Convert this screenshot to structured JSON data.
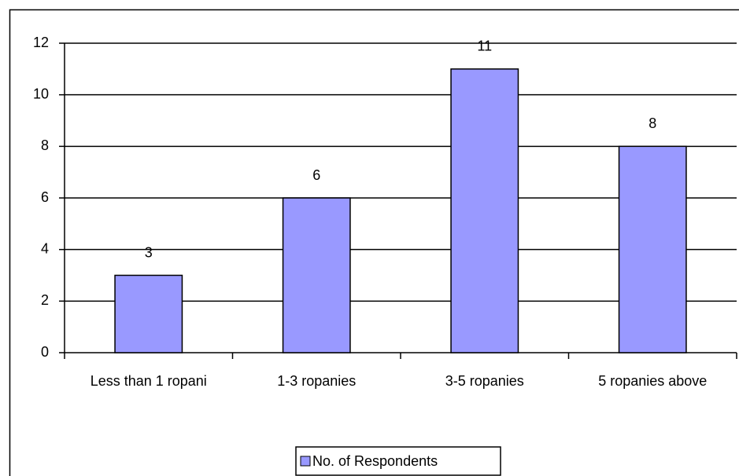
{
  "chart_data": {
    "type": "bar",
    "categories": [
      "Less than 1 ropani",
      "1-3 ropanies",
      "3-5 ropanies",
      "5 ropanies above"
    ],
    "series": [
      {
        "name": "No. of Respondents",
        "color": "#9999ff",
        "values": [
          3,
          6,
          11,
          8
        ]
      }
    ],
    "ylim": [
      0,
      12
    ],
    "yticks": [
      0,
      2,
      4,
      6,
      8,
      10,
      12
    ],
    "grid": true,
    "legend": "bottom"
  }
}
